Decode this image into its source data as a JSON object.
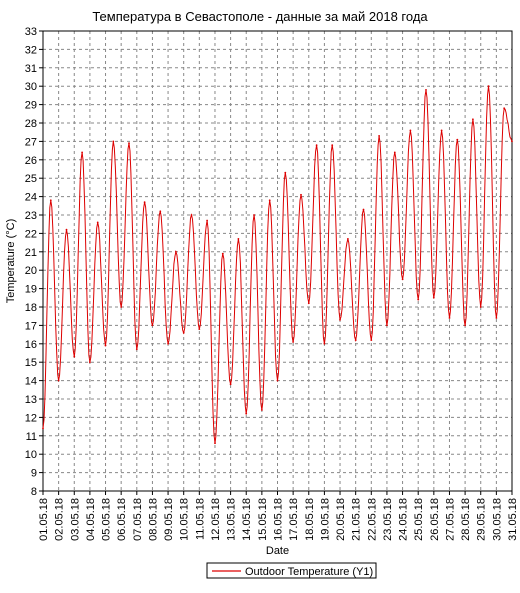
{
  "chart_data": {
    "type": "line",
    "title": "Температура в Севастополе - данные за май 2018 года",
    "xlabel": "Date",
    "ylabel": "Temperature (°C)",
    "ylim": [
      8,
      33
    ],
    "xlim": [
      "01.05.18",
      "31.05.18"
    ],
    "grid": true,
    "legend_position": "bottom",
    "x_tick_labels": [
      "01.05.18",
      "02.05.18",
      "03.05.18",
      "04.05.18",
      "05.05.18",
      "06.05.18",
      "07.05.18",
      "08.05.18",
      "09.05.18",
      "10.05.18",
      "11.05.18",
      "12.05.18",
      "13.05.18",
      "14.05.18",
      "15.05.18",
      "16.05.18",
      "17.05.18",
      "18.05.18",
      "19.05.18",
      "20.05.18",
      "21.05.18",
      "22.05.18",
      "23.05.18",
      "24.05.18",
      "25.05.18",
      "26.05.18",
      "27.05.18",
      "28.05.18",
      "29.05.18",
      "30.05.18",
      "31.05.18"
    ],
    "y_tick_labels": [
      "8",
      "9",
      "10",
      "11",
      "12",
      "13",
      "14",
      "15",
      "16",
      "17",
      "18",
      "19",
      "20",
      "21",
      "22",
      "23",
      "24",
      "25",
      "26",
      "27",
      "28",
      "29",
      "30",
      "31",
      "32",
      "33"
    ],
    "series": [
      {
        "name": "Outdoor Temperature (Y1)",
        "color": "#dd0000",
        "x": [
          "01.05.18",
          "01.05.18 12:00",
          "02.05.18",
          "02.05.18 12:00",
          "03.05.18",
          "03.05.18 12:00",
          "04.05.18",
          "04.05.18 12:00",
          "05.05.18",
          "05.05.18 12:00",
          "06.05.18",
          "06.05.18 12:00",
          "07.05.18",
          "07.05.18 12:00",
          "08.05.18",
          "08.05.18 12:00",
          "09.05.18",
          "09.05.18 12:00",
          "10.05.18",
          "10.05.18 12:00",
          "11.05.18",
          "11.05.18 12:00",
          "12.05.18",
          "12.05.18 12:00",
          "13.05.18",
          "13.05.18 12:00",
          "14.05.18",
          "14.05.18 12:00",
          "15.05.18",
          "15.05.18 12:00",
          "16.05.18",
          "16.05.18 12:00",
          "17.05.18",
          "17.05.18 12:00",
          "18.05.18",
          "18.05.18 12:00",
          "19.05.18",
          "19.05.18 12:00",
          "20.05.18",
          "20.05.18 12:00",
          "21.05.18",
          "21.05.18 12:00",
          "22.05.18",
          "22.05.18 12:00",
          "23.05.18",
          "23.05.18 12:00",
          "24.05.18",
          "24.05.18 12:00",
          "25.05.18",
          "25.05.18 12:00",
          "26.05.18",
          "26.05.18 12:00",
          "27.05.18",
          "27.05.18 12:00",
          "28.05.18",
          "28.05.18 12:00",
          "29.05.18",
          "29.05.18 12:00",
          "30.05.18",
          "30.05.18 12:00",
          "31.05.18"
        ],
        "values": [
          11.4,
          23.8,
          14.0,
          22.2,
          15.3,
          26.4,
          15.0,
          22.6,
          15.9,
          27.0,
          18.0,
          26.9,
          15.7,
          23.7,
          17.0,
          23.2,
          16.0,
          21.0,
          16.6,
          23.0,
          16.8,
          22.7,
          10.6,
          20.9,
          13.8,
          21.7,
          12.2,
          23.0,
          12.4,
          23.8,
          14.0,
          25.3,
          16.1,
          24.1,
          18.2,
          26.8,
          16.0,
          26.8,
          17.3,
          21.7,
          16.2,
          23.3,
          16.2,
          27.3,
          17.0,
          26.4,
          19.5,
          27.6,
          18.4,
          29.8,
          18.5,
          27.6,
          17.4,
          27.1,
          17.0,
          28.2,
          18.0,
          30.0,
          17.4,
          28.8,
          27.0
        ]
      }
    ]
  }
}
